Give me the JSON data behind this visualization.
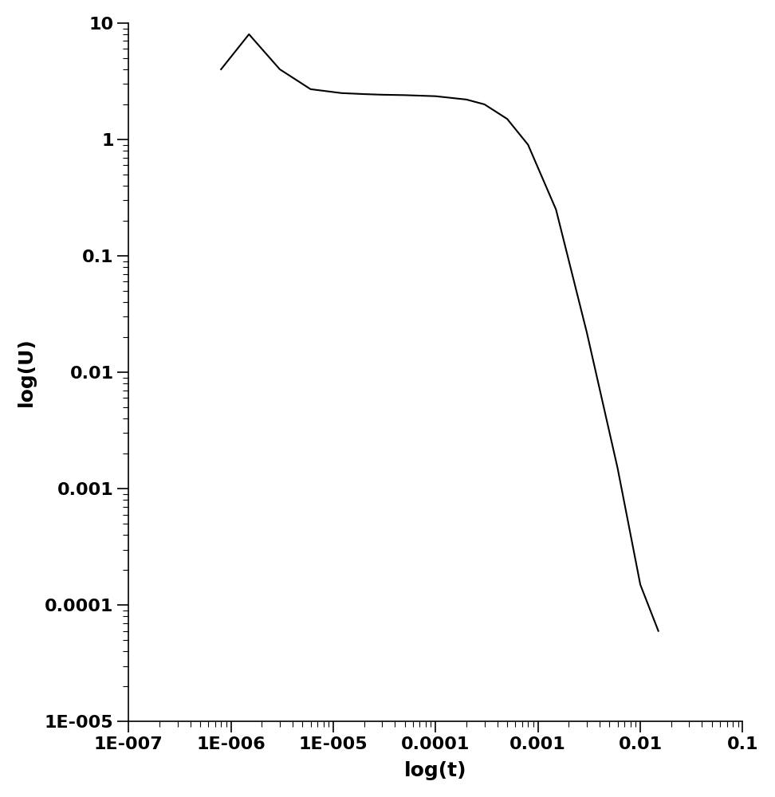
{
  "xlabel": "log(t)",
  "ylabel": "log(U)",
  "xlim": [
    1e-07,
    0.1
  ],
  "ylim": [
    1e-05,
    10
  ],
  "line_color": "#000000",
  "line_width": 1.5,
  "background_color": "#ffffff",
  "x_points": [
    8e-07,
    1.5e-06,
    3e-06,
    6e-06,
    1.2e-05,
    2e-05,
    3e-05,
    5e-05,
    0.0001,
    0.0002,
    0.0003,
    0.0005,
    0.0008,
    0.0015,
    0.003,
    0.006,
    0.01,
    0.015
  ],
  "y_points": [
    4.0,
    8.0,
    4.0,
    2.7,
    2.5,
    2.45,
    2.42,
    2.4,
    2.35,
    2.2,
    2.0,
    1.5,
    0.9,
    0.25,
    0.022,
    0.0015,
    0.00015,
    6e-05
  ],
  "xlabel_fontsize": 18,
  "ylabel_fontsize": 18,
  "tick_fontsize": 16,
  "x_major_ticks": [
    1e-07,
    1e-06,
    1e-05,
    0.0001,
    0.001,
    0.01,
    0.1
  ],
  "x_tick_labels": [
    "1E-007",
    "1E-006",
    "1E-005",
    "0.0001",
    "0.001",
    "0.01",
    "0.1"
  ],
  "y_major_ticks": [
    1e-05,
    0.0001,
    0.001,
    0.01,
    0.1,
    1,
    10
  ],
  "y_tick_labels": [
    "1E-005",
    "0.0001",
    "0.001",
    "0.01",
    "0.1",
    "1",
    "10"
  ]
}
